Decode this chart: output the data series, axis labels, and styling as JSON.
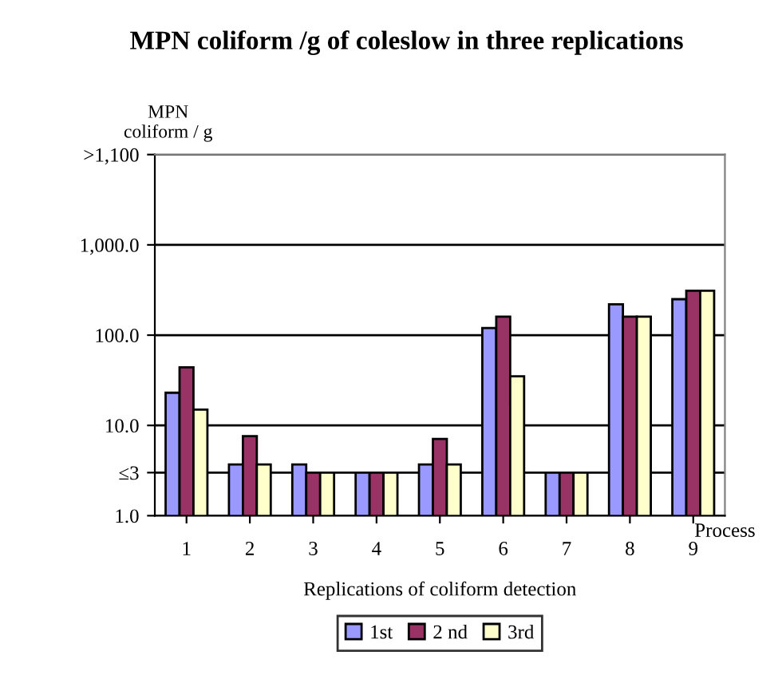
{
  "chart_data": {
    "type": "bar",
    "title": "MPN coliform /g of coleslow in three replications",
    "ylabel": "MPN\ncoliform / g",
    "xlabel": "Replications of coliform detection",
    "annotations": [
      "Process"
    ],
    "categories": [
      "1",
      "2",
      "3",
      "4",
      "5",
      "6",
      "7",
      "8",
      "9"
    ],
    "series": [
      {
        "name": "1st",
        "color": "#9999ff",
        "values": [
          23,
          3.7,
          3.7,
          3,
          3.7,
          120,
          3,
          220,
          250
        ]
      },
      {
        "name": "2 nd",
        "color": "#993366",
        "values": [
          44,
          7.6,
          3,
          3,
          7.1,
          160,
          3,
          160,
          310
        ]
      },
      {
        "name": "3rd",
        "color": "#ffffcc",
        "values": [
          15,
          3.7,
          3,
          3,
          3.7,
          35,
          3,
          160,
          310
        ]
      }
    ],
    "log": true,
    "ylim": [
      1,
      10000
    ],
    "yticks": [
      {
        "value": 1,
        "label": "1.0"
      },
      {
        "value": 3,
        "label": "≤3"
      },
      {
        "value": 10,
        "label": "10.0"
      },
      {
        "value": 100,
        "label": "100.0"
      },
      {
        "value": 1000,
        "label": "1,000.0"
      },
      {
        "value": 10000,
        "label": ">1,100"
      }
    ],
    "grid": "y",
    "legend": "bottom"
  }
}
